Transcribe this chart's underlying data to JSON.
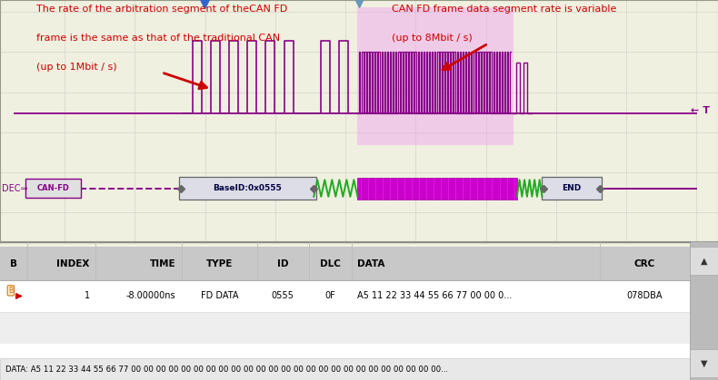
{
  "bg_oscilloscope": "#f0f0e0",
  "bg_table": "#ffffff",
  "bg_table_header": "#c8c8c8",
  "bg_footer": "#e8e8e8",
  "grid_color": "#d8d8d0",
  "signal_line_color": "#880088",
  "arrow_color": "#cc0000",
  "annotation_color": "#cc0000",
  "pink_fill_color": "#f0a0f0",
  "label_left_line1": "The rate of the arbitration segment of theCAN FD",
  "label_left_line2": "frame is the same as that of the traditional CAN",
  "label_left_line3": "(up to 1Mbit / s)",
  "label_right_line1": "CAN FD frame data segment rate is variable",
  "label_right_line2": "(up to 8Mbit / s)",
  "t_label": "← T",
  "dec_label": "DEC⇒",
  "can_fd_label": "CAN-FD",
  "base_id_label": "BaseID:0x0555",
  "end_label": "END",
  "table_headers": [
    "B",
    "INDEX",
    "TIME",
    "TYPE",
    "ID",
    "DLC",
    "DATA",
    "CRC"
  ],
  "table_row1": [
    "1",
    "-8.00000ns",
    "FD DATA",
    "0555",
    "0F",
    "A5 11 22 33 44 55 66 77 00 00 0...",
    "078DBA"
  ],
  "footer_text": "DATA: A5 11 22 33 44 55 66 77 00 00 00 00 00 00 00 00 00 00 00 00 00 00 00 00 00 00 00 00 00 00 00 00 00..."
}
